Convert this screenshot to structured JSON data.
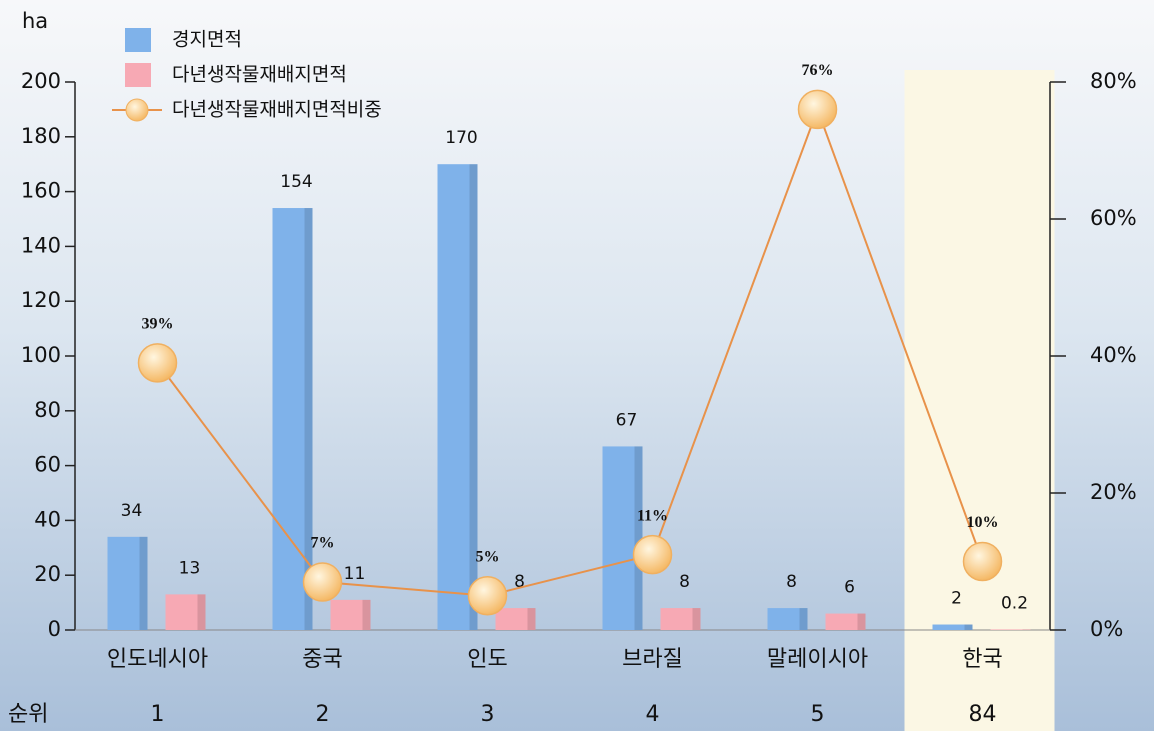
{
  "chart_data": {
    "type": "bar",
    "y_label": "ha",
    "categories": [
      "인도네시아",
      "중국",
      "인도",
      "브라질",
      "말레이시아",
      "한국"
    ],
    "rank_label": "순위",
    "ranks": [
      1,
      2,
      3,
      4,
      5,
      84
    ],
    "series": [
      {
        "name": "경지면적",
        "type": "bar",
        "color": "#7fb2ea",
        "values": [
          34,
          154,
          170,
          67,
          8,
          2
        ]
      },
      {
        "name": "다년생작물재배지면적",
        "type": "bar",
        "color": "#f7a9b4",
        "values": [
          13,
          11,
          8,
          8,
          6,
          0.2
        ]
      },
      {
        "name": "다년생작물재배지면적비중",
        "type": "line",
        "axis": "y2",
        "color": "#f0b060",
        "line_color": "#e8924a",
        "values": [
          39,
          7,
          5,
          11,
          76,
          10
        ],
        "value_labels": [
          "39%",
          "7%",
          "5%",
          "11%",
          "76%",
          "10%"
        ]
      }
    ],
    "ylim": [
      0,
      200
    ],
    "yticks": [
      0,
      20,
      40,
      60,
      80,
      100,
      120,
      140,
      160,
      180,
      200
    ],
    "y2lim": [
      0,
      80
    ],
    "y2ticks": [
      {
        "value": 0,
        "label": "0%"
      },
      {
        "value": 20,
        "label": "20%"
      },
      {
        "value": 40,
        "label": "40%"
      },
      {
        "value": 60,
        "label": "60%"
      },
      {
        "value": 80,
        "label": "80%"
      }
    ]
  }
}
